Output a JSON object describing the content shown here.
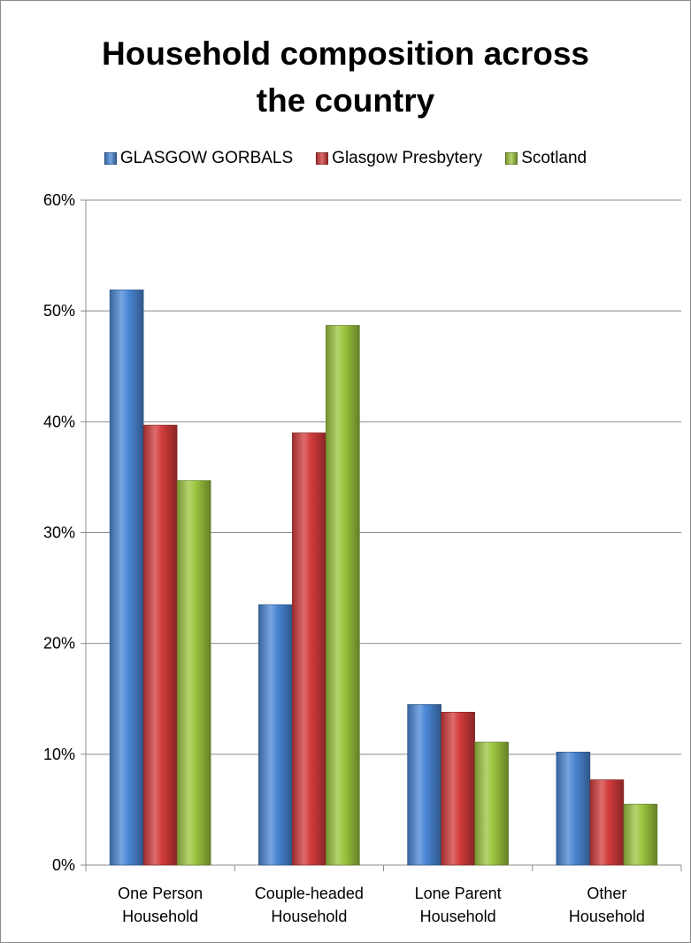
{
  "chart_data": {
    "type": "bar",
    "title": "Household composition across the country",
    "title_lines": [
      "Household composition across",
      "the country"
    ],
    "categories": [
      "One Person Household",
      "Couple-headed Household",
      "Lone Parent Household",
      "Other Household"
    ],
    "category_lines": [
      [
        "One Person",
        "Household"
      ],
      [
        "Couple-headed",
        "Household"
      ],
      [
        "Lone Parent",
        "Household"
      ],
      [
        "Other",
        "Household"
      ]
    ],
    "series": [
      {
        "name": "GLASGOW GORBALS",
        "color": "#4a86d4",
        "values": [
          0.519,
          0.235,
          0.145,
          0.102
        ]
      },
      {
        "name": "Glasgow Presbytery",
        "color": "#d23b3b",
        "values": [
          0.397,
          0.39,
          0.138,
          0.077
        ]
      },
      {
        "name": "Scotland",
        "color": "#9cc43e",
        "values": [
          0.347,
          0.487,
          0.111,
          0.055
        ]
      }
    ],
    "ylim": [
      0,
      0.6
    ],
    "yticks": [
      0,
      0.1,
      0.2,
      0.3,
      0.4,
      0.5,
      0.6
    ],
    "ytick_labels": [
      "0%",
      "10%",
      "20%",
      "30%",
      "40%",
      "50%",
      "60%"
    ],
    "xlabel": "",
    "ylabel": "",
    "grid": true,
    "legend_position": "top"
  }
}
